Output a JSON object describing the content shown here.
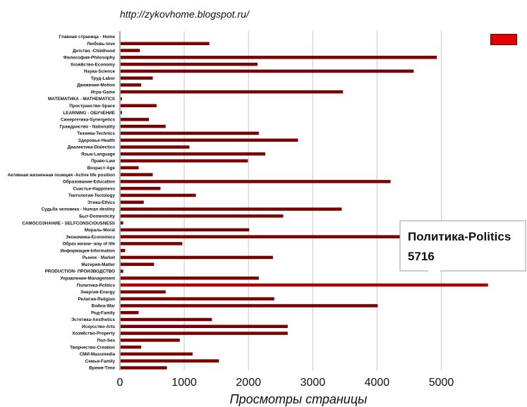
{
  "header": {
    "url_text": "http://zykovhome.blogspot.ru/"
  },
  "legend": {
    "swatch_color": "#e00000"
  },
  "tooltip": {
    "label": "Политика-Politics",
    "value": "5716"
  },
  "colors": {
    "bar": "#7a0000",
    "bar_highlight": "#aa0000",
    "grid": "#c8c8c8"
  },
  "chart_data": {
    "type": "bar",
    "orientation": "horizontal",
    "title": "",
    "xlabel": "Просмотры страницы",
    "ylabel": "",
    "xlim": [
      0,
      5716
    ],
    "xticks": [
      0,
      1000,
      2000,
      3000,
      4000,
      5000
    ],
    "grid": true,
    "categories": [
      "Главная страница - Home",
      "Любовь-love",
      "Детство -Childhood",
      "Философия-Philosophy",
      "Хозяйство-Economy",
      "Наука-Science",
      "Труд-Labor",
      "Движение-Motion",
      "Игра-Game",
      "МАТЕМАТИКА - MATHEMATICS",
      "Пространство-Space",
      "LEARNING - ОБУЧЕНИЕ",
      "Синергетика-Synergetics",
      "Гражданство - Nationality",
      "Техника-Technics",
      "Здоровье-Health",
      "Диалектика-Dialectics",
      "Язык-Language",
      "Право-Law",
      "Возраст-Age",
      "Активная жизненная позиция -Active life position",
      "Образование-Education",
      "Счастье-Happiness",
      "Тектология-Tectology",
      "Этика-Ethics",
      "Судьба человека - Human destiny",
      "Быт-Domesticity",
      "САМОСОЗНАНИЕ - SELFCONSCIOUSNESS",
      "Мораль-Moral",
      "Экономика-Economics",
      "Образ жизни- way of life",
      "Информация-Information",
      "Рынок - Market",
      "Материя-Matter",
      "PRODUCTION- ПРОИЗВОДСТВО",
      "Управление-Management",
      "Политика-Politics",
      "Энергия-Energy",
      "Религия-Religion",
      "Война-War",
      "Род-Family",
      "Эстетика-Aesthetics",
      "Искусство-Arts",
      "Хозяйство-Property",
      "Пол-Sex",
      "Творчество-Creation",
      "СМИ-Massmedia",
      "Семья-Family",
      "Время-Time"
    ],
    "values": [
      0,
      1380,
      300,
      4920,
      2130,
      4560,
      500,
      320,
      3460,
      20,
      560,
      20,
      440,
      700,
      2150,
      2760,
      1070,
      2250,
      1980,
      280,
      500,
      4200,
      620,
      1170,
      360,
      3440,
      2530,
      40,
      2000,
      4350,
      960,
      70,
      2370,
      520,
      40,
      2150,
      5716,
      700,
      2390,
      4000,
      280,
      1420,
      2600,
      2600,
      920,
      320,
      1120,
      1530,
      720
    ]
  }
}
